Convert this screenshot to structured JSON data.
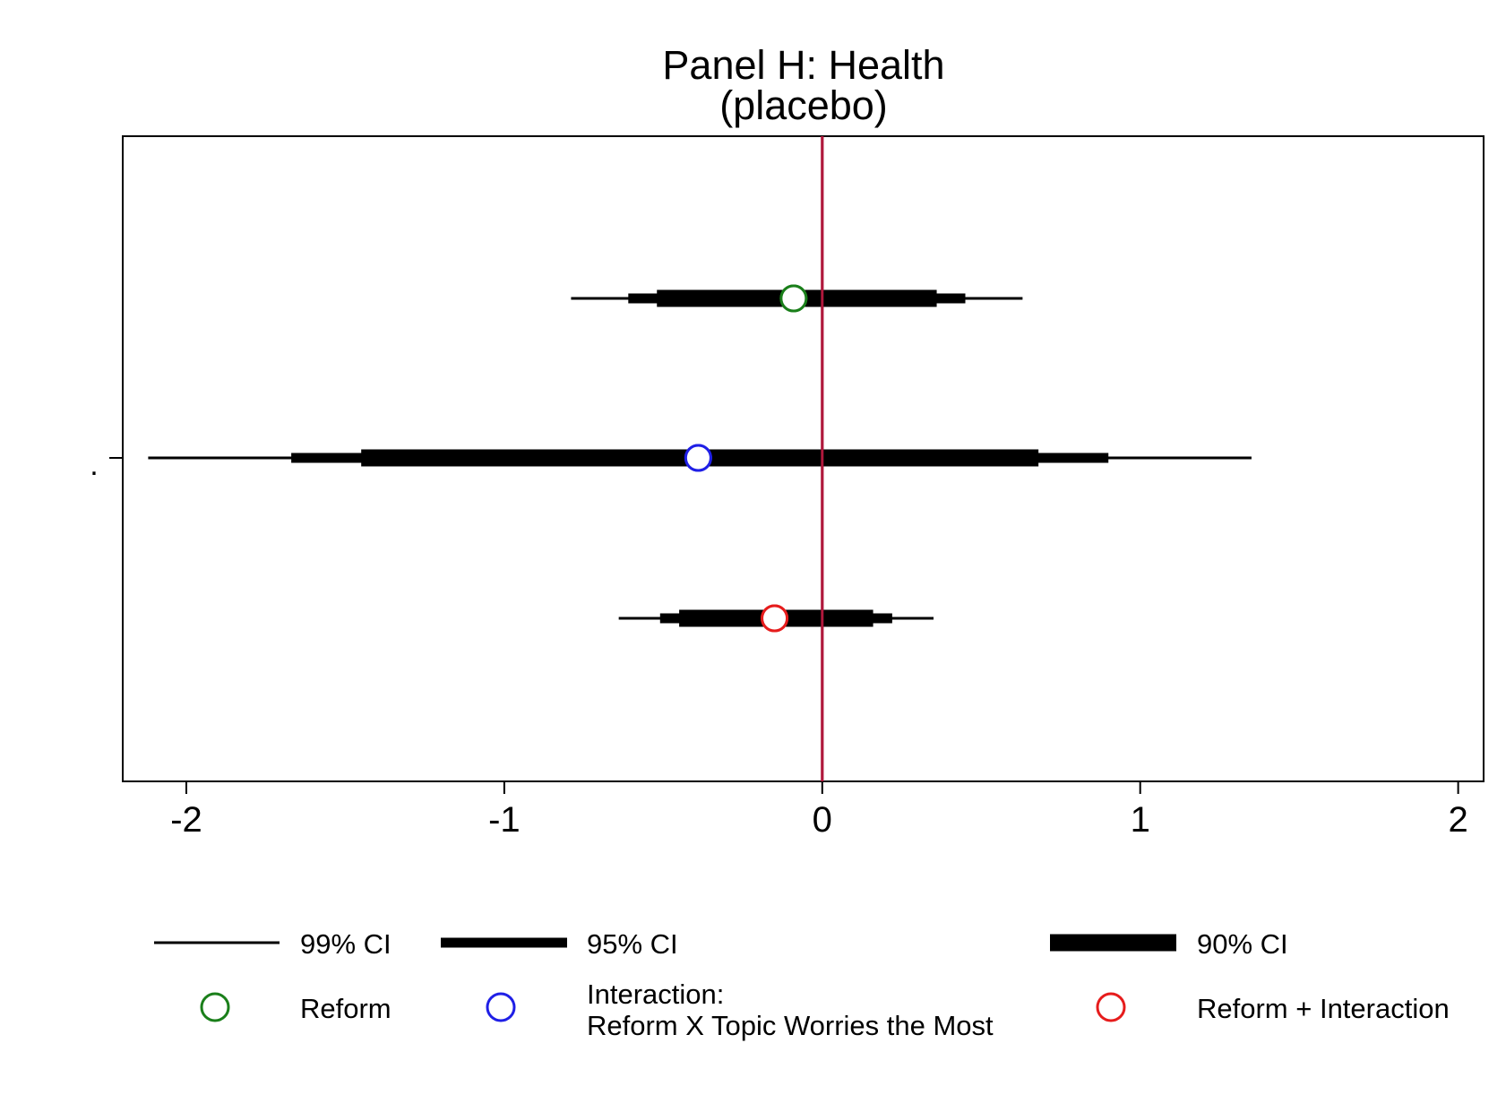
{
  "chart_data": {
    "type": "coefficient-plot",
    "title_line1": "Panel H: Health",
    "title_line2": "(placebo)",
    "xlim": [
      -2.2,
      2.08
    ],
    "xticks": [
      -2,
      -1,
      0,
      1,
      2
    ],
    "xtick_labels": [
      "-2",
      "-1",
      "0",
      "1",
      "2"
    ],
    "reference_line_x": 0,
    "reference_line_color": "#b0183c",
    "ytick_label": ".",
    "series": [
      {
        "name": "Reform",
        "color": "#1a7f1a",
        "estimate": -0.09,
        "ci99": [
          -0.79,
          0.63
        ],
        "ci95": [
          -0.61,
          0.45
        ],
        "ci90": [
          -0.52,
          0.36
        ]
      },
      {
        "name": "Interaction: Reform X Topic Worries the Most",
        "color": "#1f1fe6",
        "estimate": -0.39,
        "ci99": [
          -2.12,
          1.35
        ],
        "ci95": [
          -1.67,
          0.9
        ],
        "ci90": [
          -1.45,
          0.68
        ]
      },
      {
        "name": "Reform + Interaction",
        "color": "#e61c1c",
        "estimate": -0.15,
        "ci99": [
          -0.64,
          0.35
        ],
        "ci95": [
          -0.51,
          0.22
        ],
        "ci90": [
          -0.45,
          0.16
        ]
      }
    ],
    "legend": {
      "ci99": "99% CI",
      "ci95": "95% CI",
      "ci90": "90% CI",
      "reform": "Reform",
      "interaction_line1": "Interaction:",
      "interaction_line2": "Reform X Topic Worries the Most",
      "reform_interaction": "Reform + Interaction"
    }
  }
}
